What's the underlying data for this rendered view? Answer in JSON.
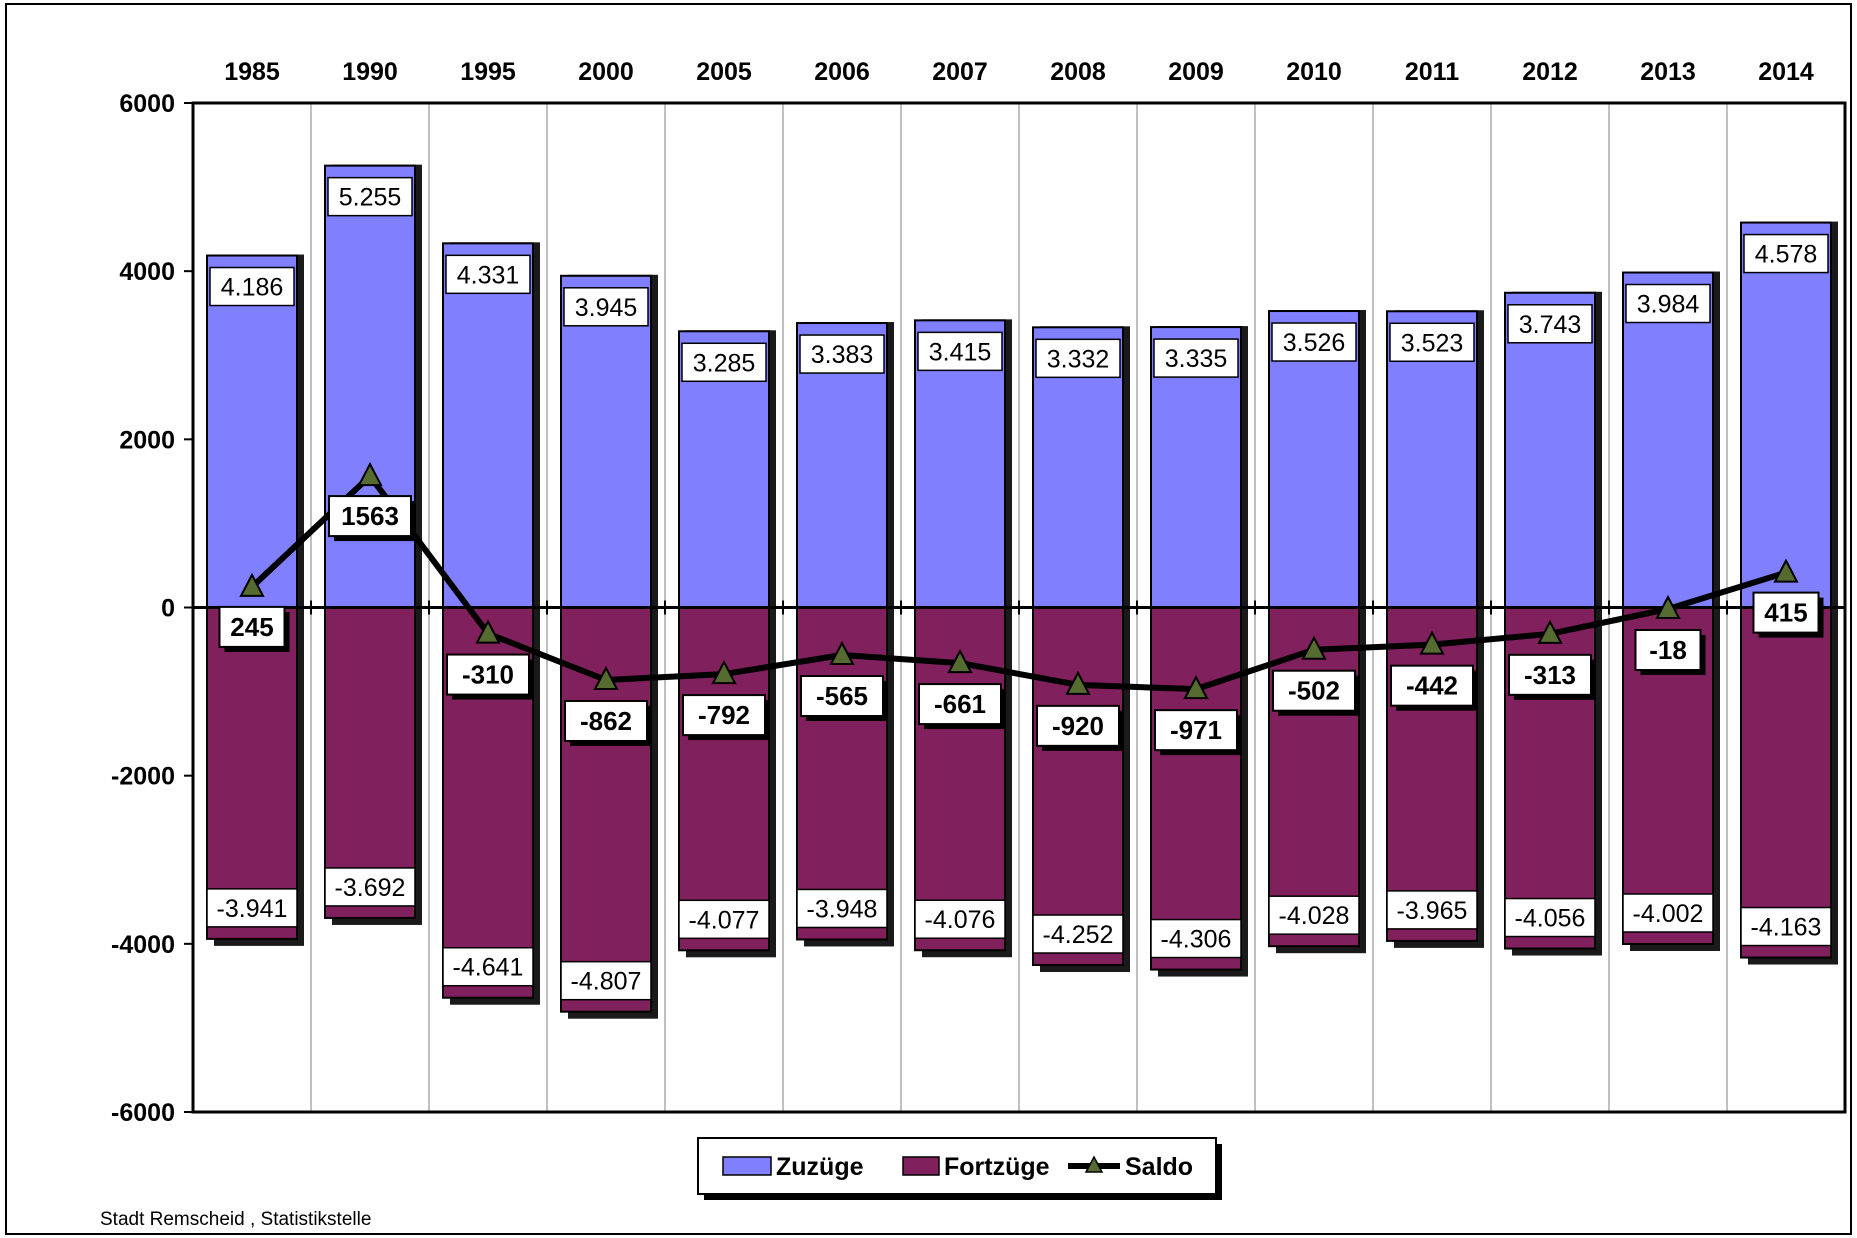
{
  "chart_data": {
    "type": "bar",
    "categories": [
      "1985",
      "1990",
      "1995",
      "2000",
      "2005",
      "2006",
      "2007",
      "2008",
      "2009",
      "2010",
      "2011",
      "2012",
      "2013",
      "2014"
    ],
    "ylim": [
      -6000,
      6000
    ],
    "yticks": [
      6000,
      4000,
      2000,
      0,
      -2000,
      -4000,
      -6000
    ],
    "ytick_labels": [
      "6000",
      "4000",
      "2000",
      "0",
      "-2000",
      "-4000",
      "-6000"
    ],
    "series": [
      {
        "name": "Zuzüge",
        "type": "bar",
        "color": "#8080ff",
        "values": [
          4186,
          5255,
          4331,
          3945,
          3285,
          3383,
          3415,
          3332,
          3335,
          3526,
          3523,
          3743,
          3984,
          4578
        ],
        "labels": [
          "4.186",
          "5.255",
          "4.331",
          "3.945",
          "3.285",
          "3.383",
          "3.415",
          "3.332",
          "3.335",
          "3.526",
          "3.523",
          "3.743",
          "3.984",
          "4.578"
        ]
      },
      {
        "name": "Fortzüge",
        "type": "bar",
        "color": "#80205c",
        "values": [
          -3941,
          -3692,
          -4641,
          -4807,
          -4077,
          -3948,
          -4076,
          -4252,
          -4306,
          -4028,
          -3965,
          -4056,
          -4002,
          -4163
        ],
        "labels": [
          "-3.941",
          "-3.692",
          "-4.641",
          "-4.807",
          "-4.077",
          "-3.948",
          "-4.076",
          "-4.252",
          "-4.306",
          "-4.028",
          "-3.965",
          "-4.056",
          "-4.002",
          "-4.163"
        ]
      },
      {
        "name": "Saldo",
        "type": "line",
        "color": "#000000",
        "marker_color": "#556b2f",
        "values": [
          245,
          1563,
          -310,
          -862,
          -792,
          -565,
          -661,
          -920,
          -971,
          -502,
          -442,
          -313,
          -18,
          415
        ],
        "labels": [
          "245",
          "1563",
          "-310",
          "-862",
          "-792",
          "-565",
          "-661",
          "-920",
          "-971",
          "-502",
          "-442",
          "-313",
          "-18",
          "415"
        ]
      }
    ],
    "legend_position": "bottom-center",
    "x_axis_position": "top",
    "grid_vertical": true,
    "source": "Stadt Remscheid , Statistikstelle"
  }
}
